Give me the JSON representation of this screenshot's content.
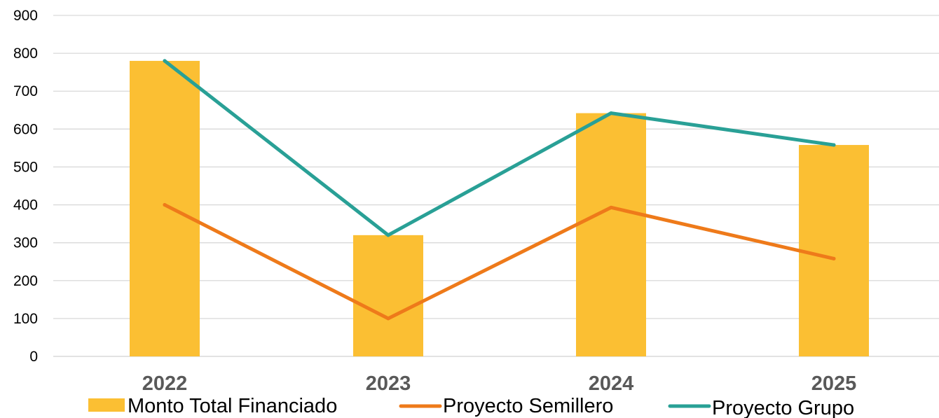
{
  "chart_data": {
    "type": "bar",
    "title": "",
    "xlabel": "",
    "ylabel": "",
    "categories": [
      "2022",
      "2023",
      "2024",
      "2025"
    ],
    "ylim": [
      0,
      900
    ],
    "yticks": [
      "0",
      "100",
      "200",
      "300",
      "400",
      "500",
      "600",
      "700",
      "800",
      "900"
    ],
    "grid": true,
    "legend_position": "bottom",
    "series": [
      {
        "name": "Monto Total Financiado",
        "kind": "bar",
        "color": "#FBBF33",
        "values": [
          780,
          320,
          642,
          558
        ]
      },
      {
        "name": "Proyecto Semillero",
        "kind": "line",
        "color": "#EE7A1A",
        "values": [
          400,
          100,
          393,
          258
        ]
      },
      {
        "name": "Proyecto Grupo",
        "kind": "line",
        "color": "#29A096",
        "values": [
          780,
          320,
          642,
          558
        ]
      }
    ]
  }
}
